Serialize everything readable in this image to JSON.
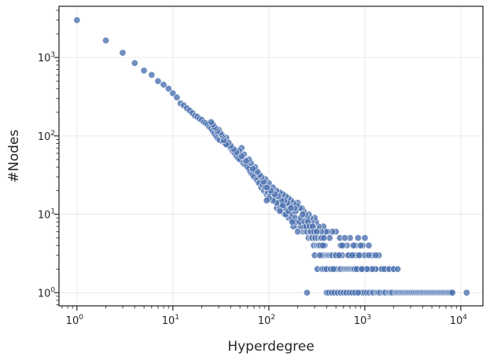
{
  "chart_data": {
    "type": "scatter",
    "title": "",
    "xlabel": "Hyperdegree",
    "ylabel": "#Nodes",
    "xscale": "log",
    "yscale": "log",
    "xlim": [
      0.65,
      17000
    ],
    "ylim": [
      0.68,
      4500
    ],
    "x_ticks": [
      {
        "base": "10",
        "exp": "0",
        "value": 1
      },
      {
        "base": "10",
        "exp": "1",
        "value": 10
      },
      {
        "base": "10",
        "exp": "2",
        "value": 100
      },
      {
        "base": "10",
        "exp": "3",
        "value": 1000
      },
      {
        "base": "10",
        "exp": "4",
        "value": 10000
      }
    ],
    "y_ticks": [
      {
        "base": "10",
        "exp": "0",
        "value": 1
      },
      {
        "base": "10",
        "exp": "1",
        "value": 10
      },
      {
        "base": "10",
        "exp": "2",
        "value": 100
      },
      {
        "base": "10",
        "exp": "3",
        "value": 1000
      }
    ],
    "grid": true,
    "color": "#4c72b0",
    "points": [
      [
        1,
        3000
      ],
      [
        2,
        1650
      ],
      [
        3,
        1150
      ],
      [
        4,
        850
      ],
      [
        5,
        680
      ],
      [
        6,
        600
      ],
      [
        7,
        500
      ],
      [
        8,
        450
      ],
      [
        9,
        400
      ],
      [
        10,
        350
      ],
      [
        11,
        310
      ],
      [
        12,
        260
      ],
      [
        13,
        245
      ],
      [
        14,
        225
      ],
      [
        15,
        210
      ],
      [
        16,
        195
      ],
      [
        17,
        180
      ],
      [
        18,
        175
      ],
      [
        19,
        165
      ],
      [
        20,
        160
      ],
      [
        21,
        150
      ],
      [
        22,
        145
      ],
      [
        23,
        140
      ],
      [
        24,
        130
      ],
      [
        25,
        125
      ],
      [
        26,
        115
      ],
      [
        27,
        108
      ],
      [
        28,
        100
      ],
      [
        29,
        95
      ],
      [
        30,
        90
      ],
      [
        31,
        88
      ],
      [
        33,
        85
      ],
      [
        35,
        80
      ],
      [
        36,
        95
      ],
      [
        38,
        75
      ],
      [
        40,
        70
      ],
      [
        42,
        64
      ],
      [
        44,
        60
      ],
      [
        46,
        55
      ],
      [
        48,
        52
      ],
      [
        50,
        50
      ],
      [
        52,
        70
      ],
      [
        54,
        45
      ],
      [
        56,
        43
      ],
      [
        58,
        42
      ],
      [
        60,
        40
      ],
      [
        62,
        38
      ],
      [
        64,
        35
      ],
      [
        66,
        33
      ],
      [
        68,
        32
      ],
      [
        70,
        30
      ],
      [
        72,
        36
      ],
      [
        74,
        28
      ],
      [
        76,
        27
      ],
      [
        78,
        25
      ],
      [
        80,
        25
      ],
      [
        83,
        22
      ],
      [
        86,
        24
      ],
      [
        89,
        20
      ],
      [
        92,
        22
      ],
      [
        95,
        18
      ],
      [
        98,
        19
      ],
      [
        101,
        17
      ],
      [
        105,
        18
      ],
      [
        109,
        16
      ],
      [
        113,
        16
      ],
      [
        117,
        15
      ],
      [
        121,
        12
      ],
      [
        125,
        14
      ],
      [
        129,
        12
      ],
      [
        133,
        13
      ],
      [
        137,
        11
      ],
      [
        141,
        11
      ],
      [
        146,
        10
      ],
      [
        151,
        12
      ],
      [
        156,
        10
      ],
      [
        161,
        9
      ],
      [
        166,
        11
      ],
      [
        171,
        9
      ],
      [
        176,
        10
      ],
      [
        182,
        8
      ],
      [
        188,
        9
      ],
      [
        194,
        8
      ],
      [
        200,
        7
      ],
      [
        207,
        8
      ],
      [
        214,
        7
      ],
      [
        221,
        7
      ],
      [
        228,
        6
      ],
      [
        235,
        7
      ],
      [
        243,
        6
      ],
      [
        251,
        6
      ],
      [
        259,
        5
      ],
      [
        267,
        6
      ],
      [
        276,
        5
      ],
      [
        285,
        5
      ],
      [
        294,
        4
      ],
      [
        304,
        5
      ],
      [
        314,
        4
      ],
      [
        324,
        4
      ],
      [
        335,
        4
      ],
      [
        346,
        4
      ],
      [
        357,
        3
      ],
      [
        369,
        3
      ],
      [
        381,
        4
      ],
      [
        394,
        3
      ],
      [
        407,
        3
      ],
      [
        420,
        3
      ],
      [
        434,
        3
      ],
      [
        448,
        3
      ],
      [
        463,
        3
      ],
      [
        478,
        2
      ],
      [
        494,
        3
      ],
      [
        510,
        2
      ],
      [
        527,
        3
      ],
      [
        545,
        2
      ],
      [
        563,
        2
      ],
      [
        581,
        3
      ],
      [
        600,
        2
      ],
      [
        620,
        2
      ],
      [
        641,
        2
      ],
      [
        662,
        2
      ],
      [
        684,
        2
      ],
      [
        706,
        2
      ],
      [
        730,
        2
      ],
      [
        754,
        2
      ],
      [
        779,
        2
      ],
      [
        805,
        2
      ],
      [
        831,
        2
      ],
      [
        859,
        2
      ],
      [
        887,
        2
      ],
      [
        917,
        1
      ],
      [
        947,
        2
      ],
      [
        978,
        1
      ],
      [
        1011,
        2
      ],
      [
        1044,
        1
      ],
      [
        1079,
        2
      ],
      [
        1114,
        1
      ],
      [
        1151,
        2
      ],
      [
        1189,
        1
      ],
      [
        1229,
        1
      ],
      [
        1270,
        2
      ],
      [
        1312,
        1
      ],
      [
        1355,
        1
      ],
      [
        1400,
        1
      ],
      [
        1447,
        1
      ],
      [
        1495,
        2
      ],
      [
        1544,
        1
      ],
      [
        1596,
        1
      ],
      [
        1649,
        1
      ],
      [
        1703,
        2
      ],
      [
        1760,
        1
      ],
      [
        1818,
        1
      ],
      [
        1879,
        1
      ],
      [
        1941,
        1
      ],
      [
        2005,
        2
      ],
      [
        2072,
        1
      ],
      [
        2141,
        1
      ],
      [
        2212,
        1
      ],
      [
        2285,
        1
      ],
      [
        2361,
        1
      ],
      [
        2440,
        1
      ],
      [
        2521,
        1
      ],
      [
        2605,
        1
      ],
      [
        2691,
        1
      ],
      [
        2781,
        1
      ],
      [
        2873,
        1
      ],
      [
        2969,
        1
      ],
      [
        3067,
        1
      ],
      [
        3169,
        1
      ],
      [
        3275,
        1
      ],
      [
        3383,
        1
      ],
      [
        3496,
        1
      ],
      [
        3612,
        1
      ],
      [
        3732,
        1
      ],
      [
        3856,
        1
      ],
      [
        3984,
        1
      ],
      [
        4116,
        1
      ],
      [
        4253,
        1
      ],
      [
        4395,
        1
      ],
      [
        4541,
        1
      ],
      [
        4692,
        1
      ],
      [
        4847,
        1
      ],
      [
        5008,
        1
      ],
      [
        5175,
        1
      ],
      [
        5346,
        1
      ],
      [
        5524,
        1
      ],
      [
        5708,
        1
      ],
      [
        5897,
        1
      ],
      [
        6093,
        1
      ],
      [
        6296,
        1
      ],
      [
        6505,
        1
      ],
      [
        6721,
        1
      ],
      [
        6944,
        1
      ],
      [
        7175,
        1
      ],
      [
        7413,
        1
      ],
      [
        7659,
        1
      ],
      [
        7914,
        1
      ],
      [
        8177,
        1
      ],
      [
        11500,
        1
      ],
      [
        250,
        1
      ],
      [
        400,
        1
      ],
      [
        420,
        1
      ],
      [
        450,
        1
      ],
      [
        480,
        1
      ],
      [
        520,
        1
      ],
      [
        560,
        1
      ],
      [
        600,
        1
      ],
      [
        640,
        1
      ],
      [
        690,
        1
      ],
      [
        740,
        1
      ],
      [
        790,
        1
      ],
      [
        850,
        1
      ],
      [
        700,
        5
      ],
      [
        650,
        4
      ],
      [
        720,
        3
      ],
      [
        800,
        4
      ],
      [
        850,
        5
      ],
      [
        900,
        3
      ],
      [
        950,
        4
      ],
      [
        1000,
        5
      ],
      [
        1100,
        4
      ],
      [
        1200,
        3
      ],
      [
        1300,
        2
      ],
      [
        1400,
        3
      ],
      [
        1500,
        2
      ],
      [
        1600,
        2
      ],
      [
        1800,
        2
      ],
      [
        2000,
        2
      ],
      [
        2200,
        2
      ],
      [
        900,
        4
      ],
      [
        1000,
        3
      ],
      [
        1100,
        3
      ],
      [
        1200,
        2
      ],
      [
        1300,
        3
      ],
      [
        800,
        3
      ],
      [
        760,
        4
      ],
      [
        860,
        2
      ],
      [
        960,
        2
      ],
      [
        1050,
        2
      ],
      [
        600,
        4
      ],
      [
        550,
        5
      ],
      [
        500,
        6
      ],
      [
        460,
        6
      ],
      [
        430,
        5
      ],
      [
        410,
        6
      ],
      [
        390,
        6
      ],
      [
        370,
        7
      ],
      [
        350,
        6
      ],
      [
        330,
        7
      ],
      [
        310,
        8
      ],
      [
        300,
        9
      ],
      [
        290,
        7
      ],
      [
        280,
        8
      ],
      [
        270,
        9
      ],
      [
        260,
        10
      ],
      [
        250,
        9
      ],
      [
        240,
        10
      ],
      [
        230,
        11
      ],
      [
        220,
        12
      ],
      [
        210,
        12
      ],
      [
        200,
        14
      ],
      [
        195,
        13
      ],
      [
        190,
        11
      ],
      [
        185,
        12
      ],
      [
        180,
        14
      ],
      [
        170,
        15
      ],
      [
        165,
        13
      ],
      [
        160,
        16
      ],
      [
        155,
        14
      ],
      [
        150,
        17
      ],
      [
        145,
        15
      ],
      [
        140,
        18
      ],
      [
        135,
        15
      ],
      [
        130,
        19
      ],
      [
        125,
        17
      ],
      [
        120,
        20
      ],
      [
        115,
        18
      ],
      [
        110,
        22
      ],
      [
        105,
        20
      ],
      [
        100,
        25
      ],
      [
        96,
        22
      ],
      [
        92,
        28
      ],
      [
        88,
        26
      ],
      [
        84,
        30
      ],
      [
        80,
        32
      ],
      [
        76,
        35
      ],
      [
        72,
        40
      ],
      [
        68,
        38
      ],
      [
        65,
        45
      ],
      [
        62,
        50
      ],
      [
        58,
        48
      ],
      [
        55,
        58
      ],
      [
        52,
        55
      ],
      [
        49,
        65
      ],
      [
        46,
        62
      ],
      [
        43,
        68
      ],
      [
        40,
        75
      ],
      [
        38,
        82
      ],
      [
        36,
        78
      ],
      [
        34,
        88
      ],
      [
        33,
        100
      ],
      [
        32,
        105
      ],
      [
        31,
        110
      ],
      [
        30,
        120
      ],
      [
        29,
        115
      ],
      [
        28,
        125
      ],
      [
        27,
        130
      ],
      [
        26,
        140
      ],
      [
        25,
        150
      ],
      [
        300,
        3
      ],
      [
        320,
        2
      ],
      [
        340,
        3
      ],
      [
        360,
        2
      ],
      [
        380,
        2
      ],
      [
        400,
        2
      ],
      [
        440,
        2
      ],
      [
        470,
        2
      ],
      [
        500,
        3
      ],
      [
        540,
        3
      ],
      [
        560,
        4
      ],
      [
        580,
        4
      ],
      [
        620,
        5
      ],
      [
        660,
        3
      ],
      [
        680,
        3
      ],
      [
        740,
        3
      ],
      [
        780,
        2
      ],
      [
        820,
        2
      ],
      [
        870,
        3
      ],
      [
        930,
        2
      ],
      [
        180,
        7
      ],
      [
        190,
        8
      ],
      [
        200,
        6
      ],
      [
        210,
        8
      ],
      [
        215,
        9
      ],
      [
        225,
        10
      ],
      [
        235,
        8
      ],
      [
        245,
        7
      ],
      [
        255,
        8
      ],
      [
        265,
        7
      ],
      [
        275,
        6
      ],
      [
        285,
        7
      ],
      [
        295,
        6
      ],
      [
        305,
        5
      ],
      [
        315,
        6
      ],
      [
        325,
        5
      ],
      [
        345,
        5
      ],
      [
        355,
        5
      ],
      [
        365,
        4
      ],
      [
        375,
        5
      ],
      [
        150,
        10
      ],
      [
        160,
        11
      ],
      [
        170,
        12
      ],
      [
        175,
        8
      ],
      [
        140,
        13
      ],
      [
        130,
        11
      ],
      [
        120,
        14
      ],
      [
        110,
        15
      ],
      [
        100,
        16
      ],
      [
        95,
        15
      ]
    ]
  }
}
